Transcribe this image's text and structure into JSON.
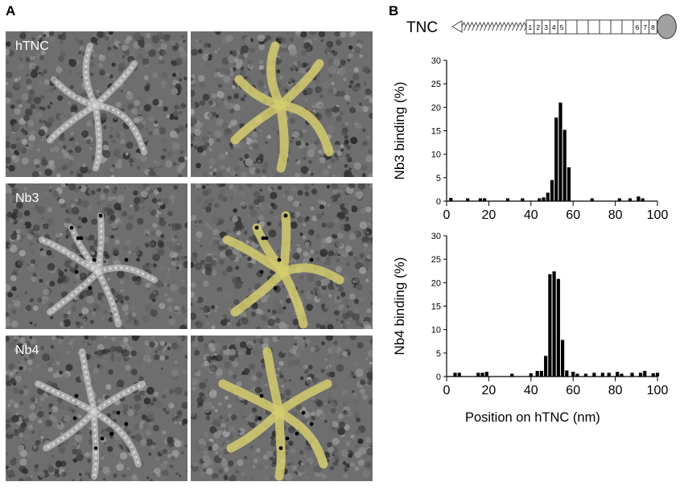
{
  "panels": {
    "a_letter": "A",
    "b_letter": "B"
  },
  "micrographs": {
    "rows": [
      {
        "label": "hTNC"
      },
      {
        "label": "Nb3"
      },
      {
        "label": "Nb4"
      }
    ],
    "overlay_color": "#d4cc6e"
  },
  "domain_diagram": {
    "label": "TNC",
    "fn3_repeats": [
      "1",
      "2",
      "3",
      "4",
      "5",
      "",
      "",
      "",
      "",
      "",
      "",
      "6",
      "7",
      "8"
    ],
    "terminal_domain_color": "#a0a0a0"
  },
  "chart_data": [
    {
      "type": "bar",
      "ylabel": "Nb3 binding (%)",
      "xlabel": "",
      "xlim": [
        0,
        100
      ],
      "ylim": [
        0,
        30
      ],
      "xticks": [
        0,
        20,
        40,
        60,
        80,
        100
      ],
      "yticks": [
        0,
        5,
        10,
        15,
        20,
        25,
        30
      ],
      "x": [
        2,
        10,
        16,
        18,
        29,
        36,
        44,
        46,
        48,
        50,
        52,
        54,
        56,
        58,
        69,
        82,
        87,
        91,
        93
      ],
      "values": [
        0.7,
        0.6,
        0.6,
        0.6,
        0.6,
        0.6,
        0.6,
        0.8,
        1.8,
        4.5,
        17.8,
        21.0,
        15.2,
        7.2,
        0.6,
        0.6,
        0.6,
        1.0,
        0.6
      ]
    },
    {
      "type": "bar",
      "ylabel": "Nb4 binding (%)",
      "xlabel": "Position on hTNC (nm)",
      "xlim": [
        0,
        100
      ],
      "ylim": [
        0,
        30
      ],
      "xticks": [
        0,
        20,
        40,
        60,
        80,
        100
      ],
      "yticks": [
        0,
        5,
        10,
        15,
        20,
        25,
        30
      ],
      "x": [
        4,
        6,
        15,
        17,
        19,
        31,
        40,
        43,
        45,
        47,
        49,
        51,
        53,
        55,
        57,
        60,
        62,
        66,
        70,
        74,
        77,
        81,
        83,
        88,
        92,
        94,
        98,
        100
      ],
      "values": [
        0.8,
        0.8,
        0.8,
        0.8,
        1.0,
        0.6,
        0.7,
        1.2,
        1.2,
        4.4,
        21.8,
        22.4,
        20.8,
        7.8,
        1.3,
        1.0,
        0.6,
        0.6,
        0.8,
        0.8,
        0.8,
        1.0,
        0.6,
        0.8,
        0.8,
        1.2,
        0.7,
        0.8
      ]
    }
  ]
}
